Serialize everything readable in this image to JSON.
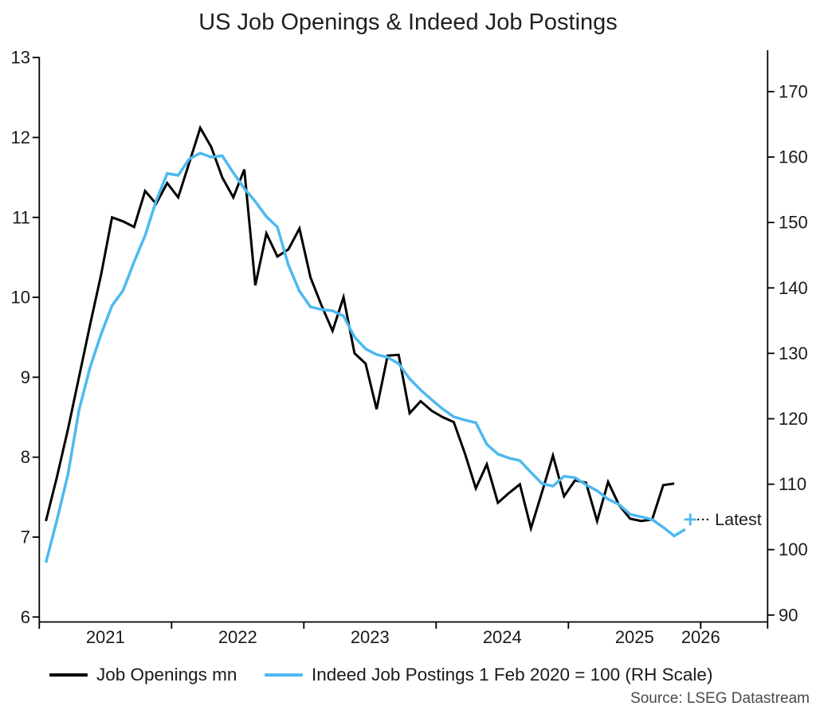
{
  "title": "US Job Openings & Indeed Job Postings",
  "source": "Source: LSEG Datastream",
  "legend": {
    "items": [
      {
        "label": "Job Openings mn",
        "color": "#000000"
      },
      {
        "label": "Indeed Job Postings 1 Feb 2020 = 100 (RH Scale)",
        "color": "#4db9ef"
      }
    ]
  },
  "chart_data": {
    "type": "line",
    "title": "US Job Openings & Indeed Job Postings",
    "x_axis": {
      "start": "2021-01",
      "unit": "month",
      "year_tick_labels": [
        "2021",
        "2022",
        "2023",
        "2024",
        "2025",
        "2026"
      ]
    },
    "left_axis": {
      "min": 6,
      "max": 13,
      "ticks": [
        13,
        12,
        11,
        10,
        9,
        8,
        7,
        6
      ]
    },
    "right_axis": {
      "min": 90,
      "max": 170,
      "ticks": [
        170,
        160,
        150,
        140,
        130,
        120,
        110,
        100,
        90
      ]
    },
    "series": [
      {
        "name": "Job Openings mn",
        "axis": "left",
        "color": "#000000",
        "values": [
          7.2,
          7.75,
          8.35,
          9.0,
          9.65,
          10.28,
          11.0,
          10.95,
          10.88,
          11.33,
          11.17,
          11.43,
          11.25,
          11.68,
          12.12,
          11.88,
          11.5,
          11.25,
          11.6,
          10.15,
          10.8,
          10.51,
          10.6,
          10.86,
          10.25,
          9.9,
          9.58,
          10.0,
          9.3,
          9.17,
          8.6,
          9.27,
          9.28,
          8.55,
          8.7,
          8.58,
          8.5,
          8.44,
          8.05,
          7.61,
          7.91,
          7.43,
          7.55,
          7.66,
          7.11,
          7.56,
          8.02,
          7.51,
          7.71,
          7.68,
          7.2,
          7.69,
          7.4,
          7.23,
          7.2,
          7.22,
          7.65,
          7.67
        ]
      },
      {
        "name": "Indeed Job Postings 1 Feb 2020 = 100 (RH Scale)",
        "axis": "right",
        "color": "#4db9ef",
        "values": [
          98,
          104.5,
          111.5,
          121.3,
          127.8,
          132.9,
          137.3,
          139.6,
          144.0,
          148.0,
          153.3,
          157.5,
          157.2,
          159.7,
          160.6,
          160.0,
          160.2,
          157.6,
          155.2,
          153.2,
          150.9,
          149.3,
          143.5,
          139.5,
          137.1,
          136.7,
          136.5,
          135.7,
          132.5,
          130.7,
          129.8,
          129.4,
          128.4,
          126.1,
          124.4,
          122.9,
          121.5,
          120.3,
          119.8,
          119.4,
          116.1,
          114.6,
          114.0,
          113.6,
          111.8,
          110.1,
          109.7,
          111.2,
          111.0,
          109.9,
          109.0,
          107.7,
          106.9,
          105.4,
          105.0,
          104.6,
          103.4,
          102.1,
          103.1
        ]
      }
    ],
    "latest_marker": {
      "label": "Latest",
      "series": "Indeed Job Postings 1 Feb 2020 = 100 (RH Scale)",
      "axis": "right",
      "value": 104.6,
      "month_index": 59.05
    }
  }
}
